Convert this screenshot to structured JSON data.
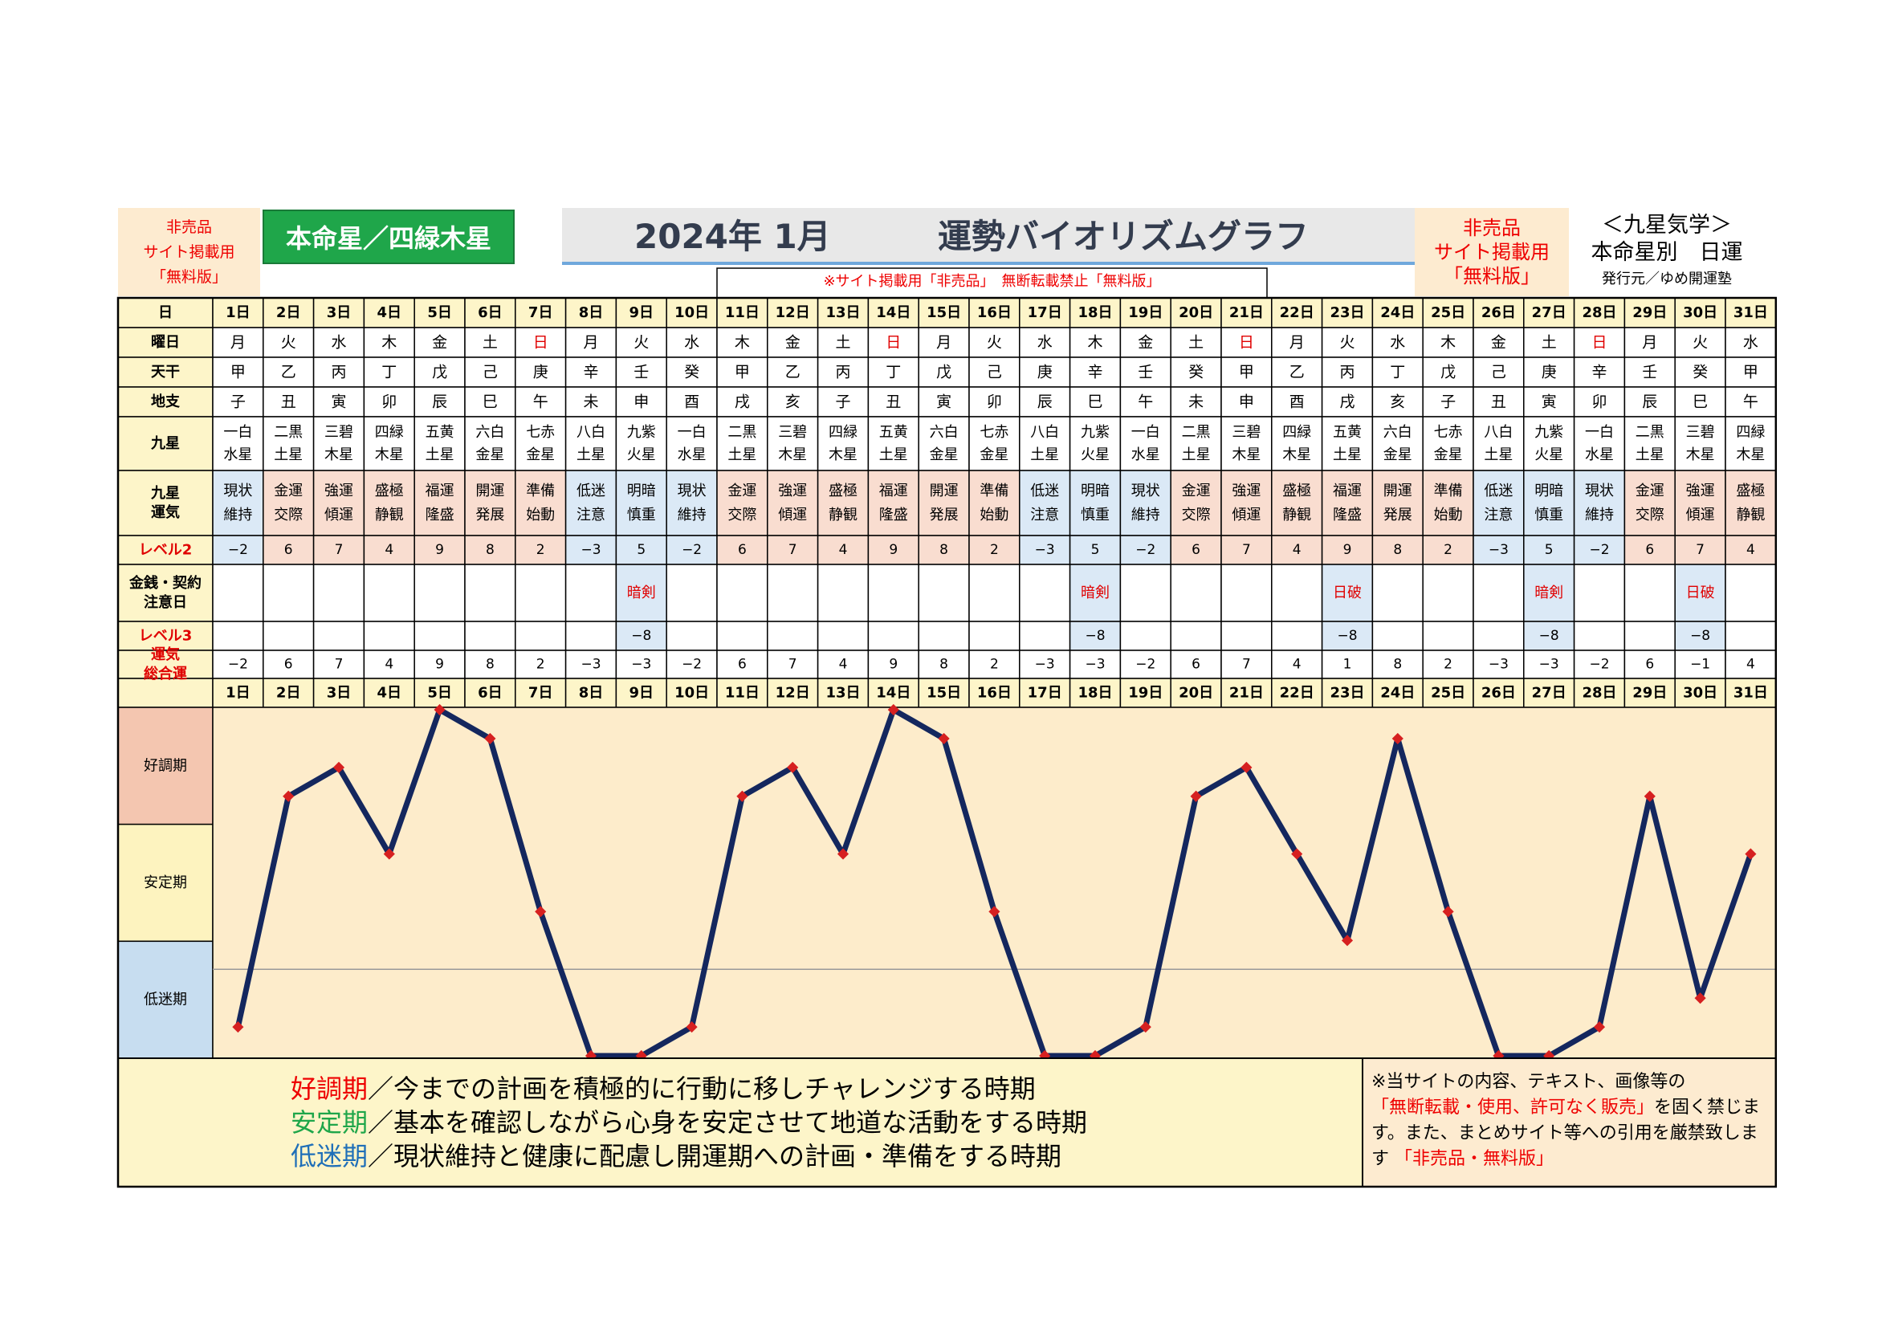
{
  "header": {
    "left_badge": [
      "非売品",
      "サイト掲載用",
      "「無料版」"
    ],
    "honmei_label": "本命星／四緑木星",
    "title_date": "2024年 1月",
    "title_main": "運勢バイオリズムグラフ",
    "notice": "※サイト掲載用「非売品」　無断転載禁止「無料版」",
    "right_badge": [
      "非売品",
      "サイト掲載用",
      "「無料版」"
    ],
    "right_title": "＜九星気学＞",
    "right_subtitle": "本命星別　日運",
    "publisher": "発行元／ゆめ開運塾"
  },
  "row_labels": {
    "day": "日",
    "weekday": "曜日",
    "tenkan": "天干",
    "chishi": "地支",
    "kyusei": "九星",
    "unki": [
      "九星",
      "運気"
    ],
    "level2": "レベル2",
    "kinsen": [
      "金銭・契約",
      "注意日"
    ],
    "level3": "レベル3",
    "sogo": [
      "運気",
      "総合運"
    ]
  },
  "table": {
    "days": [
      "1日",
      "2日",
      "3日",
      "4日",
      "5日",
      "6日",
      "7日",
      "8日",
      "9日",
      "10日",
      "11日",
      "12日",
      "13日",
      "14日",
      "15日",
      "16日",
      "17日",
      "18日",
      "19日",
      "20日",
      "21日",
      "22日",
      "23日",
      "24日",
      "25日",
      "26日",
      "27日",
      "28日",
      "29日",
      "30日",
      "31日"
    ],
    "weekdays": [
      "月",
      "火",
      "水",
      "木",
      "金",
      "土",
      "日",
      "月",
      "火",
      "水",
      "木",
      "金",
      "土",
      "日",
      "月",
      "火",
      "水",
      "木",
      "金",
      "土",
      "日",
      "月",
      "火",
      "水",
      "木",
      "金",
      "土",
      "日",
      "月",
      "火",
      "水"
    ],
    "tenkan": [
      "甲",
      "乙",
      "丙",
      "丁",
      "戊",
      "己",
      "庚",
      "辛",
      "壬",
      "癸",
      "甲",
      "乙",
      "丙",
      "丁",
      "戊",
      "己",
      "庚",
      "辛",
      "壬",
      "癸",
      "甲",
      "乙",
      "丙",
      "丁",
      "戊",
      "己",
      "庚",
      "辛",
      "壬",
      "癸",
      "甲"
    ],
    "chishi": [
      "子",
      "丑",
      "寅",
      "卯",
      "辰",
      "巳",
      "午",
      "未",
      "申",
      "酉",
      "戌",
      "亥",
      "子",
      "丑",
      "寅",
      "卯",
      "辰",
      "巳",
      "午",
      "未",
      "申",
      "酉",
      "戌",
      "亥",
      "子",
      "丑",
      "寅",
      "卯",
      "辰",
      "巳",
      "午"
    ],
    "kyusei": [
      [
        "一白",
        "水星"
      ],
      [
        "二黒",
        "土星"
      ],
      [
        "三碧",
        "木星"
      ],
      [
        "四緑",
        "木星"
      ],
      [
        "五黄",
        "土星"
      ],
      [
        "六白",
        "金星"
      ],
      [
        "七赤",
        "金星"
      ],
      [
        "八白",
        "土星"
      ],
      [
        "九紫",
        "火星"
      ],
      [
        "一白",
        "水星"
      ],
      [
        "二黒",
        "土星"
      ],
      [
        "三碧",
        "木星"
      ],
      [
        "四緑",
        "木星"
      ],
      [
        "五黄",
        "土星"
      ],
      [
        "六白",
        "金星"
      ],
      [
        "七赤",
        "金星"
      ],
      [
        "八白",
        "土星"
      ],
      [
        "九紫",
        "火星"
      ],
      [
        "一白",
        "水星"
      ],
      [
        "二黒",
        "土星"
      ],
      [
        "三碧",
        "木星"
      ],
      [
        "四緑",
        "木星"
      ],
      [
        "五黄",
        "土星"
      ],
      [
        "六白",
        "金星"
      ],
      [
        "七赤",
        "金星"
      ],
      [
        "八白",
        "土星"
      ],
      [
        "九紫",
        "火星"
      ],
      [
        "一白",
        "水星"
      ],
      [
        "二黒",
        "土星"
      ],
      [
        "三碧",
        "木星"
      ],
      [
        "四緑",
        "木星"
      ]
    ],
    "unki": [
      [
        "現状",
        "維持"
      ],
      [
        "金運",
        "交際"
      ],
      [
        "強運",
        "傾運"
      ],
      [
        "盛極",
        "静観"
      ],
      [
        "福運",
        "隆盛"
      ],
      [
        "開運",
        "発展"
      ],
      [
        "準備",
        "始動"
      ],
      [
        "低迷",
        "注意"
      ],
      [
        "明暗",
        "慎重"
      ],
      [
        "現状",
        "維持"
      ],
      [
        "金運",
        "交際"
      ],
      [
        "強運",
        "傾運"
      ],
      [
        "盛極",
        "静観"
      ],
      [
        "福運",
        "隆盛"
      ],
      [
        "開運",
        "発展"
      ],
      [
        "準備",
        "始動"
      ],
      [
        "低迷",
        "注意"
      ],
      [
        "明暗",
        "慎重"
      ],
      [
        "現状",
        "維持"
      ],
      [
        "金運",
        "交際"
      ],
      [
        "強運",
        "傾運"
      ],
      [
        "盛極",
        "静観"
      ],
      [
        "福運",
        "隆盛"
      ],
      [
        "開運",
        "発展"
      ],
      [
        "準備",
        "始動"
      ],
      [
        "低迷",
        "注意"
      ],
      [
        "明暗",
        "慎重"
      ],
      [
        "現状",
        "維持"
      ],
      [
        "金運",
        "交際"
      ],
      [
        "強運",
        "傾運"
      ],
      [
        "盛極",
        "静観"
      ]
    ],
    "level2": [
      "−2",
      "6",
      "7",
      "4",
      "9",
      "8",
      "2",
      "−3",
      "5",
      "−2",
      "6",
      "7",
      "4",
      "9",
      "8",
      "2",
      "−3",
      "5",
      "−2",
      "6",
      "7",
      "4",
      "9",
      "8",
      "2",
      "−3",
      "5",
      "−2",
      "6",
      "7",
      "4"
    ],
    "kinsen": [
      "",
      "",
      "",
      "",
      "",
      "",
      "",
      "",
      "暗剣",
      "",
      "",
      "",
      "",
      "",
      "",
      "",
      "",
      "暗剣",
      "",
      "",
      "",
      "",
      "日破",
      "",
      "",
      "",
      "暗剣",
      "",
      "",
      "日破",
      ""
    ],
    "level3": [
      "",
      "",
      "",
      "",
      "",
      "",
      "",
      "",
      "−8",
      "",
      "",
      "",
      "",
      "",
      "",
      "",
      "",
      "−8",
      "",
      "",
      "",
      "",
      "−8",
      "",
      "",
      "",
      "−8",
      "",
      "",
      "−8",
      ""
    ],
    "sogo": [
      "−2",
      "6",
      "7",
      "4",
      "9",
      "8",
      "2",
      "−3",
      "−3",
      "−2",
      "6",
      "7",
      "4",
      "9",
      "8",
      "2",
      "−3",
      "−3",
      "−2",
      "6",
      "7",
      "4",
      "1",
      "8",
      "2",
      "−3",
      "−3",
      "−2",
      "6",
      "−1",
      "4"
    ]
  },
  "chart_data": {
    "type": "line",
    "x": [
      "1日",
      "2日",
      "3日",
      "4日",
      "5日",
      "6日",
      "7日",
      "8日",
      "9日",
      "10日",
      "11日",
      "12日",
      "13日",
      "14日",
      "15日",
      "16日",
      "17日",
      "18日",
      "19日",
      "20日",
      "21日",
      "22日",
      "23日",
      "24日",
      "25日",
      "26日",
      "27日",
      "28日",
      "29日",
      "30日",
      "31日"
    ],
    "values": [
      -2,
      6,
      7,
      4,
      9,
      8,
      2,
      -3,
      -3,
      -2,
      6,
      7,
      4,
      9,
      8,
      2,
      -3,
      -3,
      -2,
      6,
      7,
      4,
      1,
      8,
      2,
      -3,
      -3,
      -2,
      6,
      -1,
      4
    ],
    "ylim": [
      -3,
      9
    ],
    "zones": [
      "好調期",
      "安定期",
      "低迷期"
    ],
    "line_color": "#14275e",
    "marker_color": "#d62020"
  },
  "legend": {
    "good_term": "好調期",
    "good_text": "／今までの計画を積極的に行動に移しチャレンジする時期",
    "stable_term": "安定期",
    "stable_text": "／基本を確認しながら心身を安定させて地道な活動をする時期",
    "low_term": "低迷期",
    "low_text": "／現状維持と健康に配慮し開運期への計画・準備をする時期"
  },
  "copyright": {
    "line1": "※当サイトの内容、テキスト、画像等の",
    "red1": "「無断転載・使用、許可なく販売」",
    "line2": "を固く禁じます。また、まとめサイト等への引用を厳禁致します",
    "red2": "「非売品・無料版」"
  },
  "colors": {
    "cream": "#fdf5c9",
    "salmon": "#f9ddd0",
    "lightblue": "#dbe9f6",
    "chart_bg": "#fdeccb",
    "zone_good": "#f4c6b0",
    "zone_stable": "#fdf3bf",
    "zone_low": "#c7ddf0",
    "green": "#1fa64a",
    "red": "#e00000"
  }
}
